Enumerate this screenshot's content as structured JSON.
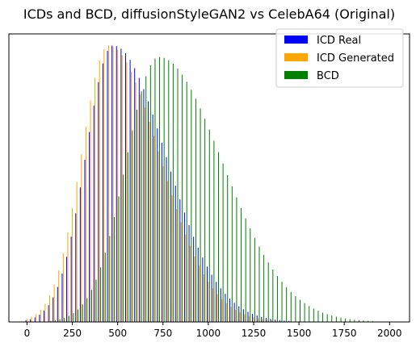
{
  "chart_data": {
    "type": "bar",
    "title": "ICDs and BCD, diffusionStyleGAN2 vs CelebA64 (Original)",
    "xlabel": "",
    "ylabel": "",
    "xlim": [
      -100,
      2110
    ],
    "ylim": [
      0,
      1.0
    ],
    "y_axis_visible": false,
    "x_ticks": [
      0,
      250,
      500,
      750,
      1000,
      1250,
      1500,
      1750,
      2000
    ],
    "x_tick_labels": [
      "0",
      "250",
      "500",
      "750",
      "1000",
      "1250",
      "1500",
      "1750",
      "2000"
    ],
    "grid": false,
    "legend_position": "top-right",
    "bar_interval": 25,
    "series": [
      {
        "name": "ICD Real",
        "color": "#0000ff",
        "peak_x": 480,
        "rise_width": 150,
        "fall_width": 290,
        "peak_height": 0.96,
        "x_start": 0,
        "x_end": 1550
      },
      {
        "name": "ICD Generated",
        "color": "#ffa500",
        "peak_x": 450,
        "rise_width": 150,
        "fall_width": 280,
        "peak_height": 0.96,
        "x_start": 0,
        "x_end": 1550
      },
      {
        "name": "BCD",
        "color": "#008000",
        "peak_x": 720,
        "rise_width": 180,
        "fall_width": 350,
        "peak_height": 0.92,
        "x_start": 0,
        "x_end": 2050
      }
    ]
  }
}
